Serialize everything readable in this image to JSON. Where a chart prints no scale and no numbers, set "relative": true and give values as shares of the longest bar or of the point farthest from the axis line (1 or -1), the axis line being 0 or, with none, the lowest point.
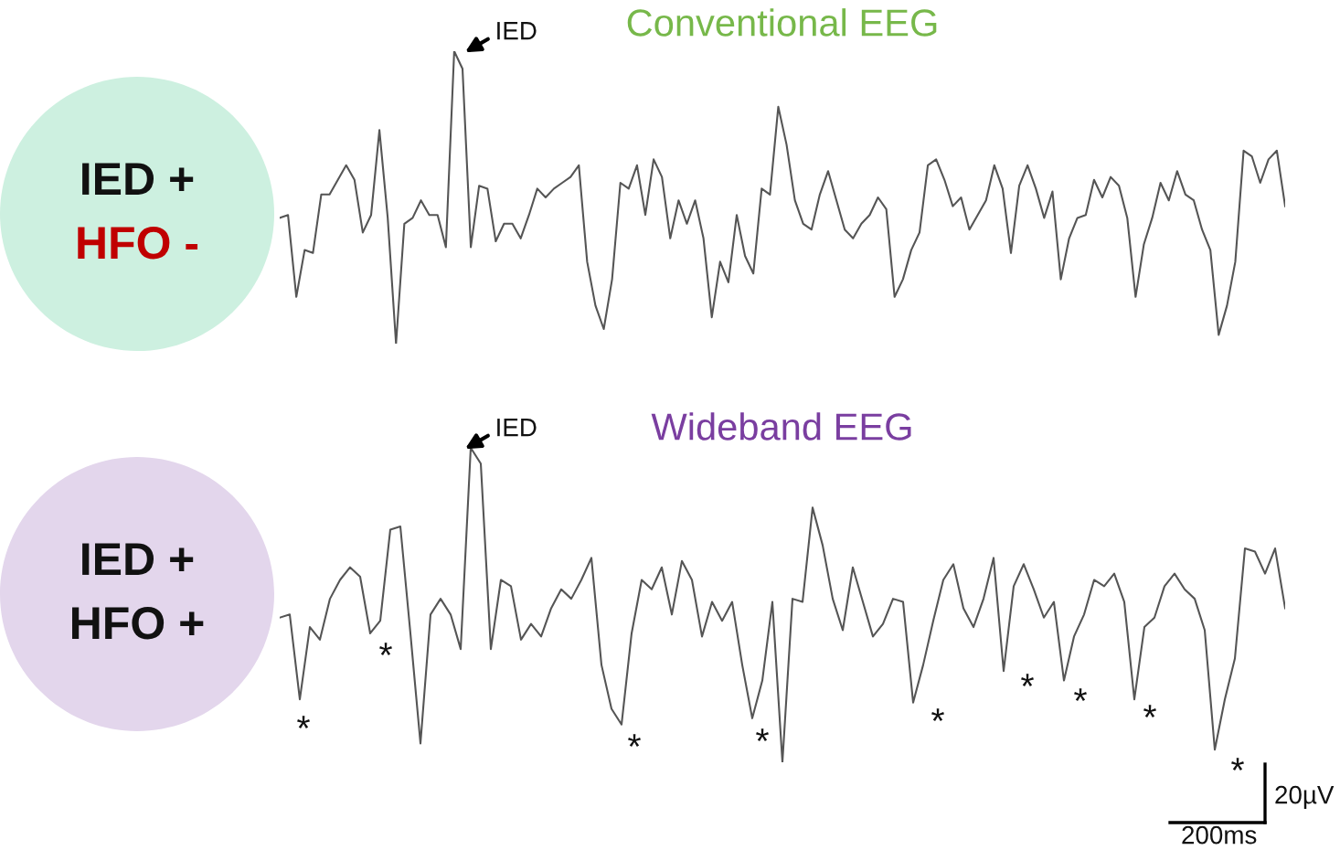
{
  "chart_data": [
    {
      "type": "line",
      "relative": true,
      "title": "Conventional EEG",
      "tick_labels": false,
      "grid": false,
      "legend": false,
      "categories": [
        null,
        null,
        null,
        null,
        null,
        null,
        null,
        null,
        null,
        null,
        null,
        null,
        null,
        null,
        null,
        null,
        null,
        null,
        null,
        null,
        null,
        null,
        null,
        null,
        null,
        null,
        null,
        null,
        null,
        null,
        null,
        null,
        null,
        null,
        null,
        null,
        null,
        null,
        null,
        null,
        null,
        null,
        null,
        null,
        null,
        null,
        null,
        null,
        null,
        null,
        null,
        null,
        null,
        null,
        null,
        null,
        null,
        null,
        null,
        null,
        null,
        null,
        null,
        null,
        null,
        null,
        null,
        null,
        null,
        null,
        null,
        null,
        null,
        null,
        null,
        null,
        null,
        null,
        null,
        null,
        null,
        null,
        null,
        null,
        null,
        null,
        null,
        null,
        null,
        null,
        null,
        null,
        null,
        null,
        null,
        null,
        null,
        null,
        null,
        null,
        null,
        null,
        null,
        null,
        null,
        null,
        null,
        null,
        null,
        null,
        null,
        null,
        null,
        null,
        null,
        null,
        null,
        null,
        null,
        null,
        null,
        null
      ],
      "series": [
        {
          "color": "#555555",
          "values": [
            0.43,
            0.44,
            0.16,
            0.32,
            0.31,
            0.51,
            0.51,
            0.56,
            0.61,
            0.56,
            0.38,
            0.44,
            0.73,
            0.43,
            0.0,
            0.41,
            0.43,
            0.49,
            0.44,
            0.44,
            0.33,
            1.0,
            0.94,
            0.33,
            0.54,
            0.53,
            0.35,
            0.41,
            0.41,
            0.36,
            0.44,
            0.53,
            0.5,
            0.53,
            0.55,
            0.57,
            0.61,
            0.28,
            0.13,
            0.05,
            0.22,
            0.55,
            0.53,
            0.61,
            0.44,
            0.63,
            0.57,
            0.36,
            0.49,
            0.41,
            0.49,
            0.36,
            0.09,
            0.28,
            0.21,
            0.44,
            0.3,
            0.24,
            0.53,
            0.51,
            0.81,
            0.68,
            0.49,
            0.41,
            0.39,
            0.51,
            0.59,
            0.49,
            0.39,
            0.36,
            0.41,
            0.44,
            0.5,
            0.46,
            0.16,
            0.22,
            0.32,
            0.38,
            0.61,
            0.63,
            0.56,
            0.47,
            0.5,
            0.39,
            0.44,
            0.49,
            0.61,
            0.53,
            0.31,
            0.54,
            0.61,
            0.53,
            0.43,
            0.52,
            0.22,
            0.36,
            0.43,
            0.44,
            0.56,
            0.5,
            0.57,
            0.54,
            0.43,
            0.16,
            0.34,
            0.43,
            0.55,
            0.49,
            0.59,
            0.51,
            0.49,
            0.39,
            0.32,
            0.03,
            0.13,
            0.28,
            0.66,
            0.64,
            0.55,
            0.63,
            0.66,
            0.47
          ]
        }
      ],
      "annotations": [
        "IED +",
        "HFO -",
        "IED"
      ]
    },
    {
      "type": "line",
      "relative": true,
      "title": "Wideband EEG",
      "tick_labels": false,
      "grid": false,
      "legend": false,
      "categories": [
        null,
        null,
        null,
        null,
        null,
        null,
        null,
        null,
        null,
        null,
        null,
        null,
        null,
        null,
        null,
        null,
        null,
        null,
        null,
        null,
        null,
        null,
        null,
        null,
        null,
        null,
        null,
        null,
        null,
        null,
        null,
        null,
        null,
        null,
        null,
        null,
        null,
        null,
        null,
        null,
        null,
        null,
        null,
        null,
        null,
        null,
        null,
        null,
        null,
        null,
        null,
        null,
        null,
        null,
        null,
        null,
        null,
        null,
        null,
        null,
        null,
        null,
        null,
        null,
        null,
        null,
        null,
        null,
        null,
        null,
        null,
        null,
        null,
        null,
        null,
        null,
        null,
        null,
        null,
        null,
        null,
        null,
        null,
        null,
        null,
        null,
        null,
        null,
        null,
        null,
        null,
        null,
        null,
        null,
        null,
        null,
        null,
        null,
        null,
        null,
        null
      ],
      "series": [
        {
          "color": "#555555",
          "values": [
            0.46,
            0.47,
            0.2,
            0.43,
            0.39,
            0.52,
            0.58,
            0.62,
            0.59,
            0.41,
            0.45,
            0.74,
            0.75,
            0.41,
            0.06,
            0.47,
            0.52,
            0.47,
            0.36,
            1.0,
            0.95,
            0.36,
            0.58,
            0.56,
            0.39,
            0.44,
            0.4,
            0.49,
            0.55,
            0.52,
            0.58,
            0.65,
            0.31,
            0.17,
            0.12,
            0.41,
            0.58,
            0.55,
            0.62,
            0.47,
            0.64,
            0.58,
            0.4,
            0.51,
            0.45,
            0.51,
            0.31,
            0.14,
            0.26,
            0.51,
            0.0,
            0.52,
            0.51,
            0.81,
            0.69,
            0.52,
            0.42,
            0.62,
            0.51,
            0.4,
            0.44,
            0.52,
            0.51,
            0.19,
            0.31,
            0.45,
            0.58,
            0.63,
            0.49,
            0.43,
            0.52,
            0.65,
            0.29,
            0.56,
            0.63,
            0.55,
            0.46,
            0.51,
            0.26,
            0.4,
            0.47,
            0.58,
            0.56,
            0.6,
            0.51,
            0.2,
            0.43,
            0.46,
            0.56,
            0.6,
            0.55,
            0.52,
            0.42,
            0.04,
            0.2,
            0.33,
            0.68,
            0.67,
            0.6,
            0.68,
            0.49
          ]
        }
      ],
      "annotations": [
        "IED +",
        "HFO +",
        "20µV",
        "200ms",
        "IED",
        "*",
        "*",
        "*",
        "*",
        "*",
        "*",
        "*",
        "*",
        "*"
      ]
    }
  ]
}
